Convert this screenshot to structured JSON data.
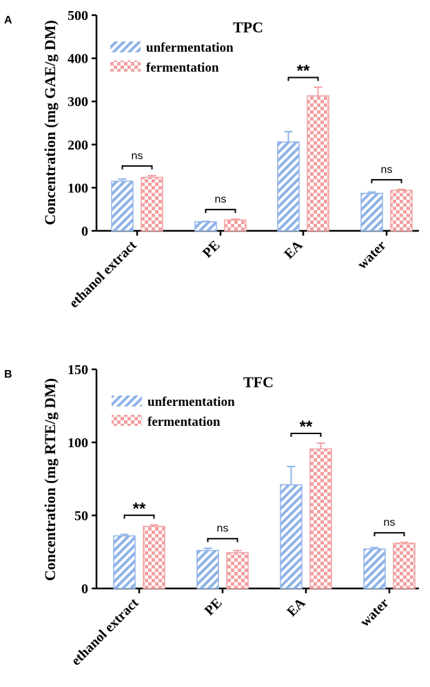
{
  "chart_data": [
    {
      "panel_label": "A",
      "type": "bar",
      "title": "TPC",
      "xlabel": "",
      "ylabel": "Concentration (mg GAE/g DM)",
      "ylim": [
        0,
        500
      ],
      "yticks": [
        "0",
        "100",
        "200",
        "300",
        "400",
        "500"
      ],
      "categories": [
        "ethanol extract",
        "PE",
        "EA",
        "water"
      ],
      "series": [
        {
          "name": "unfermentation",
          "values": [
            115,
            21,
            206,
            87
          ],
          "errors": [
            5,
            1,
            24,
            3
          ]
        },
        {
          "name": "fermentation",
          "values": [
            124,
            25,
            313,
            94
          ],
          "errors": [
            4,
            2,
            20,
            2
          ]
        }
      ],
      "significance": [
        "ns",
        "ns",
        "**",
        "ns"
      ],
      "legend": "top-center"
    },
    {
      "panel_label": "B",
      "type": "bar",
      "title": "TFC",
      "xlabel": "",
      "ylabel": "Concentration (mg RTE/g DM)",
      "ylim": [
        0,
        150
      ],
      "yticks": [
        "0",
        "50",
        "100",
        "150"
      ],
      "categories": [
        "ethanol extract",
        "PE",
        "EA",
        "water"
      ],
      "series": [
        {
          "name": "unfermentation",
          "values": [
            36,
            26,
            71,
            27
          ],
          "errors": [
            1,
            1.5,
            12.5,
            1
          ]
        },
        {
          "name": "fermentation",
          "values": [
            42.5,
            24.5,
            95.5,
            31
          ],
          "errors": [
            1,
            1.5,
            4,
            0.5
          ]
        }
      ],
      "significance": [
        "**",
        "ns",
        "**",
        "ns"
      ],
      "legend": "top-center"
    }
  ],
  "colors": {
    "unfermentation": "#8FB3E8",
    "fermentation": "#F2A0A0",
    "axis": "#000000"
  }
}
